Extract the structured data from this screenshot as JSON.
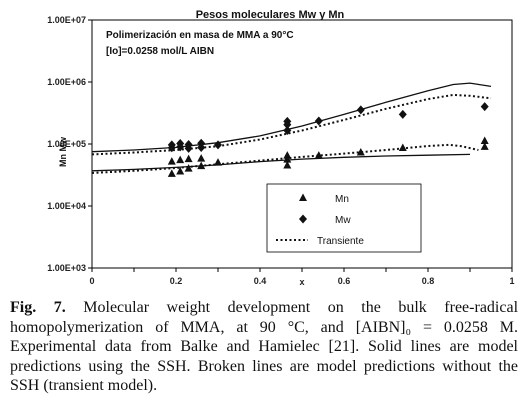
{
  "chart_data": {
    "type": "scatter",
    "title": "Pesos moleculares Mw y Mn",
    "annotations": [
      "Polimerización en masa de MMA a 90°C",
      "[Io]=0.0258 mol/L AIBN"
    ],
    "xlabel": "x",
    "ylabel": "Mn  Mw",
    "xlim": [
      0,
      1
    ],
    "ylim": [
      1000,
      10000000
    ],
    "y_scale": "log",
    "x_ticks": [
      "0",
      "0.2",
      "0.4",
      "x",
      "0.6",
      "0.8",
      "1"
    ],
    "y_ticks": [
      "1.00E+03",
      "1.00E+04",
      "1.00E+05",
      "1.00E+06",
      "1.00E+07"
    ],
    "grid": false,
    "legend_position": "bottom-center",
    "series": [
      {
        "name": "Mn",
        "kind": "points",
        "marker": "triangle",
        "x": [
          0.19,
          0.19,
          0.21,
          0.21,
          0.23,
          0.23,
          0.26,
          0.26,
          0.3,
          0.465,
          0.465,
          0.465,
          0.54,
          0.64,
          0.74,
          0.935,
          0.935
        ],
        "y": [
          52000,
          33000,
          55000,
          36000,
          57000,
          40000,
          58000,
          44000,
          50000,
          65000,
          56000,
          45000,
          65000,
          73000,
          86000,
          112000,
          90000
        ]
      },
      {
        "name": "Mw",
        "kind": "points",
        "marker": "diamond",
        "x": [
          0.19,
          0.19,
          0.21,
          0.21,
          0.23,
          0.23,
          0.26,
          0.26,
          0.3,
          0.465,
          0.465,
          0.465,
          0.54,
          0.64,
          0.74,
          0.935
        ],
        "y": [
          97000,
          87000,
          102000,
          90000,
          98000,
          85000,
          103000,
          88000,
          97000,
          232000,
          205000,
          165000,
          235000,
          355000,
          300000,
          400000
        ]
      },
      {
        "name": "",
        "kind": "line",
        "dash": "solid",
        "x": [
          0.0,
          0.1,
          0.2,
          0.3,
          0.4,
          0.5,
          0.6,
          0.7,
          0.8,
          0.86,
          0.9,
          0.95
        ],
        "y": [
          75000,
          80000,
          88000,
          105000,
          135000,
          195000,
          300000,
          470000,
          720000,
          910000,
          960000,
          850000
        ]
      },
      {
        "name": "",
        "kind": "line",
        "dash": "solid",
        "x": [
          0.0,
          0.1,
          0.2,
          0.3,
          0.4,
          0.5,
          0.6,
          0.7,
          0.8,
          0.9
        ],
        "y": [
          37000,
          39000,
          42000,
          46000,
          52000,
          57000,
          61000,
          64000,
          66000,
          68000
        ]
      },
      {
        "name": "Transiente",
        "kind": "line",
        "dash": "dotted",
        "x": [
          0.0,
          0.1,
          0.2,
          0.3,
          0.4,
          0.5,
          0.6,
          0.7,
          0.8,
          0.86,
          0.9,
          0.95
        ],
        "y": [
          68000,
          73000,
          80000,
          92000,
          118000,
          165000,
          245000,
          370000,
          530000,
          620000,
          600000,
          545000
        ]
      },
      {
        "name": "",
        "kind": "line",
        "dash": "dotted",
        "x": [
          0.0,
          0.1,
          0.2,
          0.3,
          0.4,
          0.5,
          0.6,
          0.7,
          0.8,
          0.85,
          0.88,
          0.92
        ],
        "y": [
          34000,
          37000,
          41000,
          47000,
          54000,
          62000,
          70000,
          80000,
          93000,
          97000,
          92000,
          80000
        ]
      }
    ]
  },
  "caption": {
    "label": "Fig. 7.",
    "text": " Molecular weight development on the bulk free-radical homopolymerization of MMA, at 90 °C, and [AIBN]₀ = 0.0258 M. Experimental data from Balke and Hamielec [21]. Solid lines are model predictions using the SSH. Broken lines are model predictions without the SSH (transient model)."
  }
}
